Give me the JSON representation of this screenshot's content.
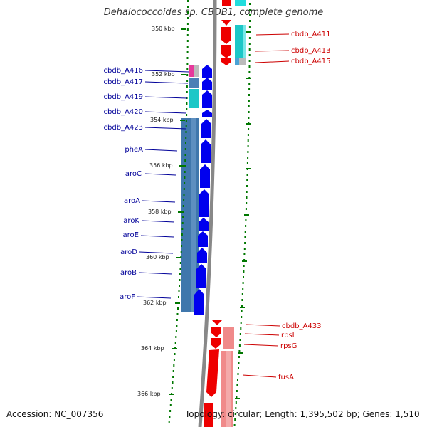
{
  "title": "Dehalococcoides sp. CBDB1, complete genome",
  "footer": {
    "accession": "Accession: NC_007356",
    "topology": "Topology: circular; Length: 1,395,502 bp; Genes: 1,510"
  },
  "scale_labels": [
    "350 kbp",
    "352 kbp",
    "354 kbp",
    "356 kbp",
    "358 kbp",
    "360 kbp",
    "362 kbp",
    "364 kbp",
    "366 kbp"
  ],
  "genes_left": [
    "cbdb_A416",
    "cbdb_A417",
    "cbdb_A419",
    "cbdb_A420",
    "cbdb_A423",
    "pheA",
    "aroC",
    "aroA",
    "aroK",
    "aroE",
    "aroD",
    "aroB",
    "aroF"
  ],
  "genes_right": [
    "cbdb_A411",
    "cbdb_A413",
    "cbdb_A415",
    "cbdb_A433",
    "rpsL",
    "rpsG",
    "fusA"
  ],
  "colors": {
    "forward_gene": "#0000ee",
    "reverse_gene": "#ee0000",
    "left_label": "#000099",
    "right_label": "#cc0000",
    "scale_tick": "#007700",
    "backbone": "#888888"
  }
}
